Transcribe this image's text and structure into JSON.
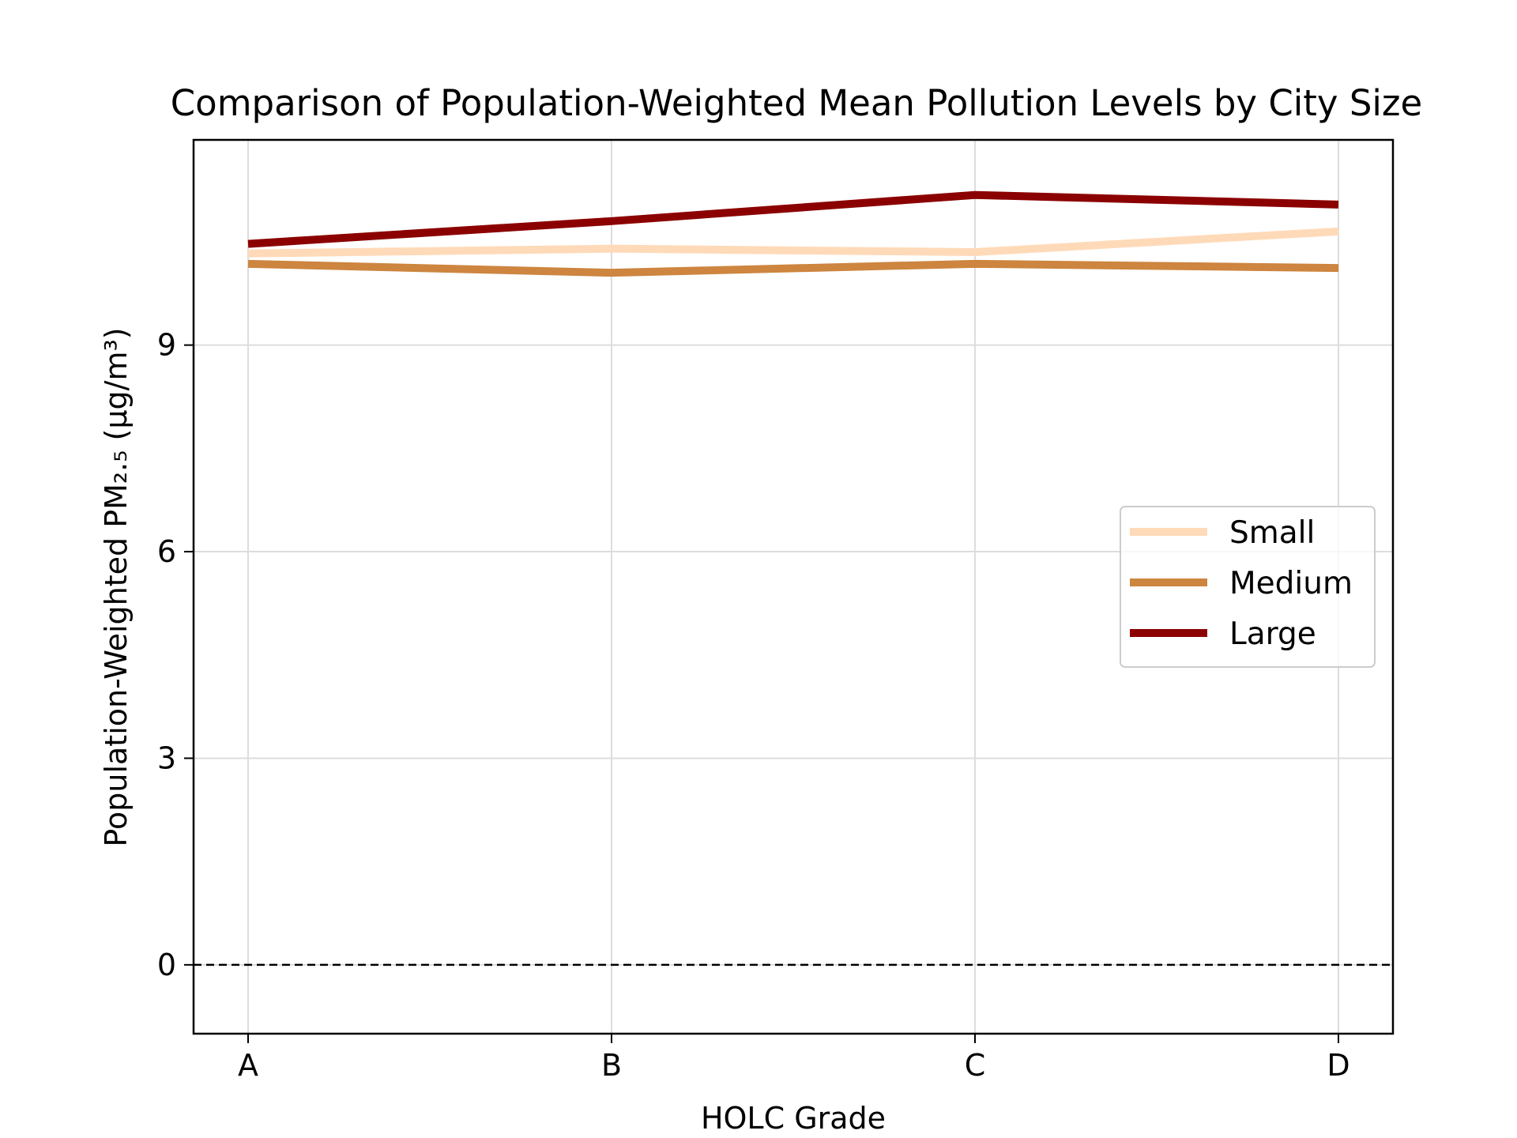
{
  "chart_data": {
    "type": "line",
    "title": "Comparison of Population-Weighted Mean Pollution Levels by City Size",
    "xlabel": "HOLC Grade",
    "ylabel": "Population-Weighted PM₂.₅ (µg/m³)",
    "categories": [
      "A",
      "B",
      "C",
      "D"
    ],
    "ylim": [
      -1.0,
      11.98
    ],
    "yticks": [
      0,
      3,
      6,
      9
    ],
    "ytick_labels": [
      "0",
      "3",
      "6",
      "9"
    ],
    "grid": true,
    "legend_position": "center-right",
    "reference_line": {
      "y": 0,
      "style": "dashed",
      "color": "#000000"
    },
    "series": [
      {
        "name": "Small",
        "color": "#FFDAB9",
        "values": [
          10.33,
          10.4,
          10.35,
          10.65
        ]
      },
      {
        "name": "Medium",
        "color": "#CD853F",
        "values": [
          10.18,
          10.05,
          10.18,
          10.12
        ]
      },
      {
        "name": "Large",
        "color": "#8B0000",
        "values": [
          10.47,
          10.8,
          11.18,
          11.04
        ]
      }
    ]
  }
}
